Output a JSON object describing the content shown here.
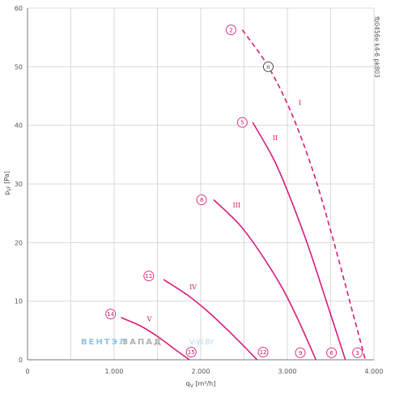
{
  "chart_data": {
    "type": "line",
    "title": "",
    "xlabel": "q_V [m³/h]",
    "ylabel": "p_sF [Pa]",
    "xlim": [
      0,
      4000
    ],
    "ylim": [
      0,
      60
    ],
    "x_ticks": [
      0,
      1000,
      2000,
      3000,
      4000
    ],
    "x_tick_labels": [
      "0",
      "1.000",
      "2.000",
      "3.000",
      "4.000"
    ],
    "y_ticks": [
      0,
      10,
      20,
      30,
      40,
      50,
      60
    ],
    "y_tick_labels": [
      "0",
      "10",
      "20",
      "30",
      "40",
      "50",
      "60"
    ],
    "grid": true,
    "series": [
      {
        "name": "I",
        "dashed": true,
        "x": [
          2480,
          2780,
          3050,
          3300,
          3520,
          3720,
          3900
        ],
        "y": [
          56.3,
          50.0,
          42.0,
          32.0,
          21.0,
          10.0,
          0
        ]
      },
      {
        "name": "II",
        "dashed": false,
        "x": [
          2600,
          2850,
          3050,
          3250,
          3450,
          3670
        ],
        "y": [
          40.5,
          34.0,
          27.0,
          19.0,
          10.0,
          0
        ]
      },
      {
        "name": "III",
        "dashed": false,
        "x": [
          2150,
          2450,
          2700,
          2950,
          3150,
          3330
        ],
        "y": [
          27.3,
          23.0,
          18.0,
          12.0,
          6.0,
          0
        ]
      },
      {
        "name": "IV",
        "dashed": false,
        "x": [
          1570,
          1850,
          2100,
          2350,
          2520,
          2650
        ],
        "y": [
          13.7,
          11.0,
          8.0,
          4.5,
          2.0,
          0
        ]
      },
      {
        "name": "V",
        "dashed": false,
        "x": [
          1080,
          1300,
          1500,
          1700,
          1870
        ],
        "y": [
          7.2,
          5.8,
          4.0,
          1.8,
          0
        ]
      }
    ],
    "series_labels": [
      {
        "text": "I",
        "x": 3130,
        "y": 43.5
      },
      {
        "text": "II",
        "x": 2830,
        "y": 37.5
      },
      {
        "text": "III",
        "x": 2370,
        "y": 26.0
      },
      {
        "text": "IV",
        "x": 1870,
        "y": 12.0
      },
      {
        "text": "V",
        "x": 1380,
        "y": 6.6
      }
    ],
    "point_markers": [
      {
        "label": "2",
        "x": 2350,
        "y": 56.3
      },
      {
        "label": "n",
        "x": 2780,
        "y": 50.0
      },
      {
        "label": "5",
        "x": 2480,
        "y": 40.5
      },
      {
        "label": "8",
        "x": 2010,
        "y": 27.3
      },
      {
        "label": "11",
        "x": 1400,
        "y": 14.3
      },
      {
        "label": "14",
        "x": 960,
        "y": 7.8
      },
      {
        "label": "15",
        "x": 1890,
        "y": 1.3
      },
      {
        "label": "12",
        "x": 2720,
        "y": 1.3
      },
      {
        "label": "9",
        "x": 3150,
        "y": 1.2
      },
      {
        "label": "6",
        "x": 3510,
        "y": 1.2
      },
      {
        "label": "3",
        "x": 3810,
        "y": 1.2
      }
    ],
    "side_code": "fb0456e k4-6 pk803",
    "watermark": {
      "part1": "ВЕНТЭЛ",
      "part2": "ЗАПАД",
      "part3": "V-W.BY"
    },
    "colors": {
      "curve": "#d81b7a",
      "grid": "#d9d9d9",
      "axis": "#777777"
    }
  }
}
